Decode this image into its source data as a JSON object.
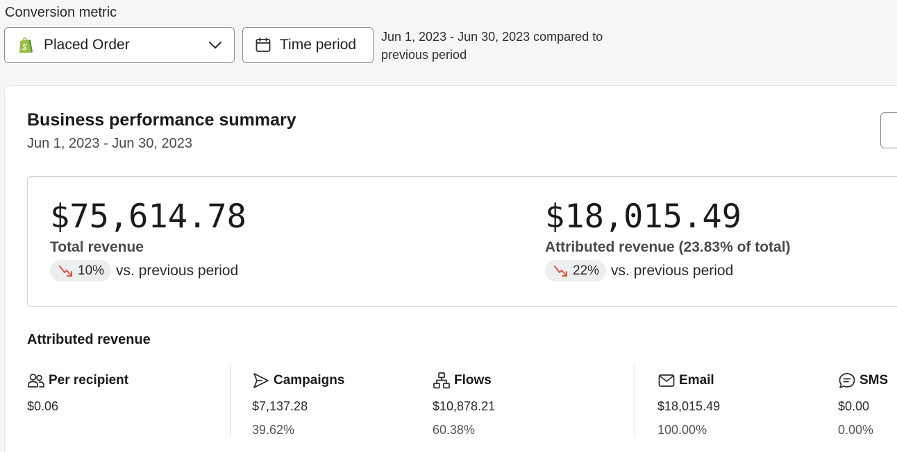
{
  "conversion": {
    "label": "Conversion metric",
    "selected": "Placed Order",
    "time_button": "Time period",
    "compare_text": "Jun 1, 2023 - Jun 30, 2023 compared to previous period"
  },
  "summary": {
    "title": "Business performance summary",
    "date_range": "Jun 1, 2023 - Jun 30, 2023",
    "total": {
      "amount": "$75,614.78",
      "label": "Total revenue",
      "change": "10%",
      "vs": "vs. previous period"
    },
    "attributed": {
      "amount": "$18,015.49",
      "label": "Attributed revenue (23.83% of total)",
      "change": "22%",
      "vs": "vs. previous period"
    }
  },
  "attributed_revenue": {
    "title": "Attributed revenue",
    "per_recipient": {
      "label": "Per recipient",
      "value": "$0.06"
    },
    "campaigns": {
      "label": "Campaigns",
      "value": "$7,137.28",
      "pct": "39.62%"
    },
    "flows": {
      "label": "Flows",
      "value": "$10,878.21",
      "pct": "60.38%"
    },
    "email": {
      "label": "Email",
      "value": "$18,015.49",
      "pct": "100.00%"
    },
    "sms": {
      "label": "SMS",
      "value": "$0.00",
      "pct": "0.00%"
    }
  },
  "colors": {
    "trend_down": "#e0533d",
    "shopify_green": "#95bf47",
    "border": "#8c8c8c"
  }
}
